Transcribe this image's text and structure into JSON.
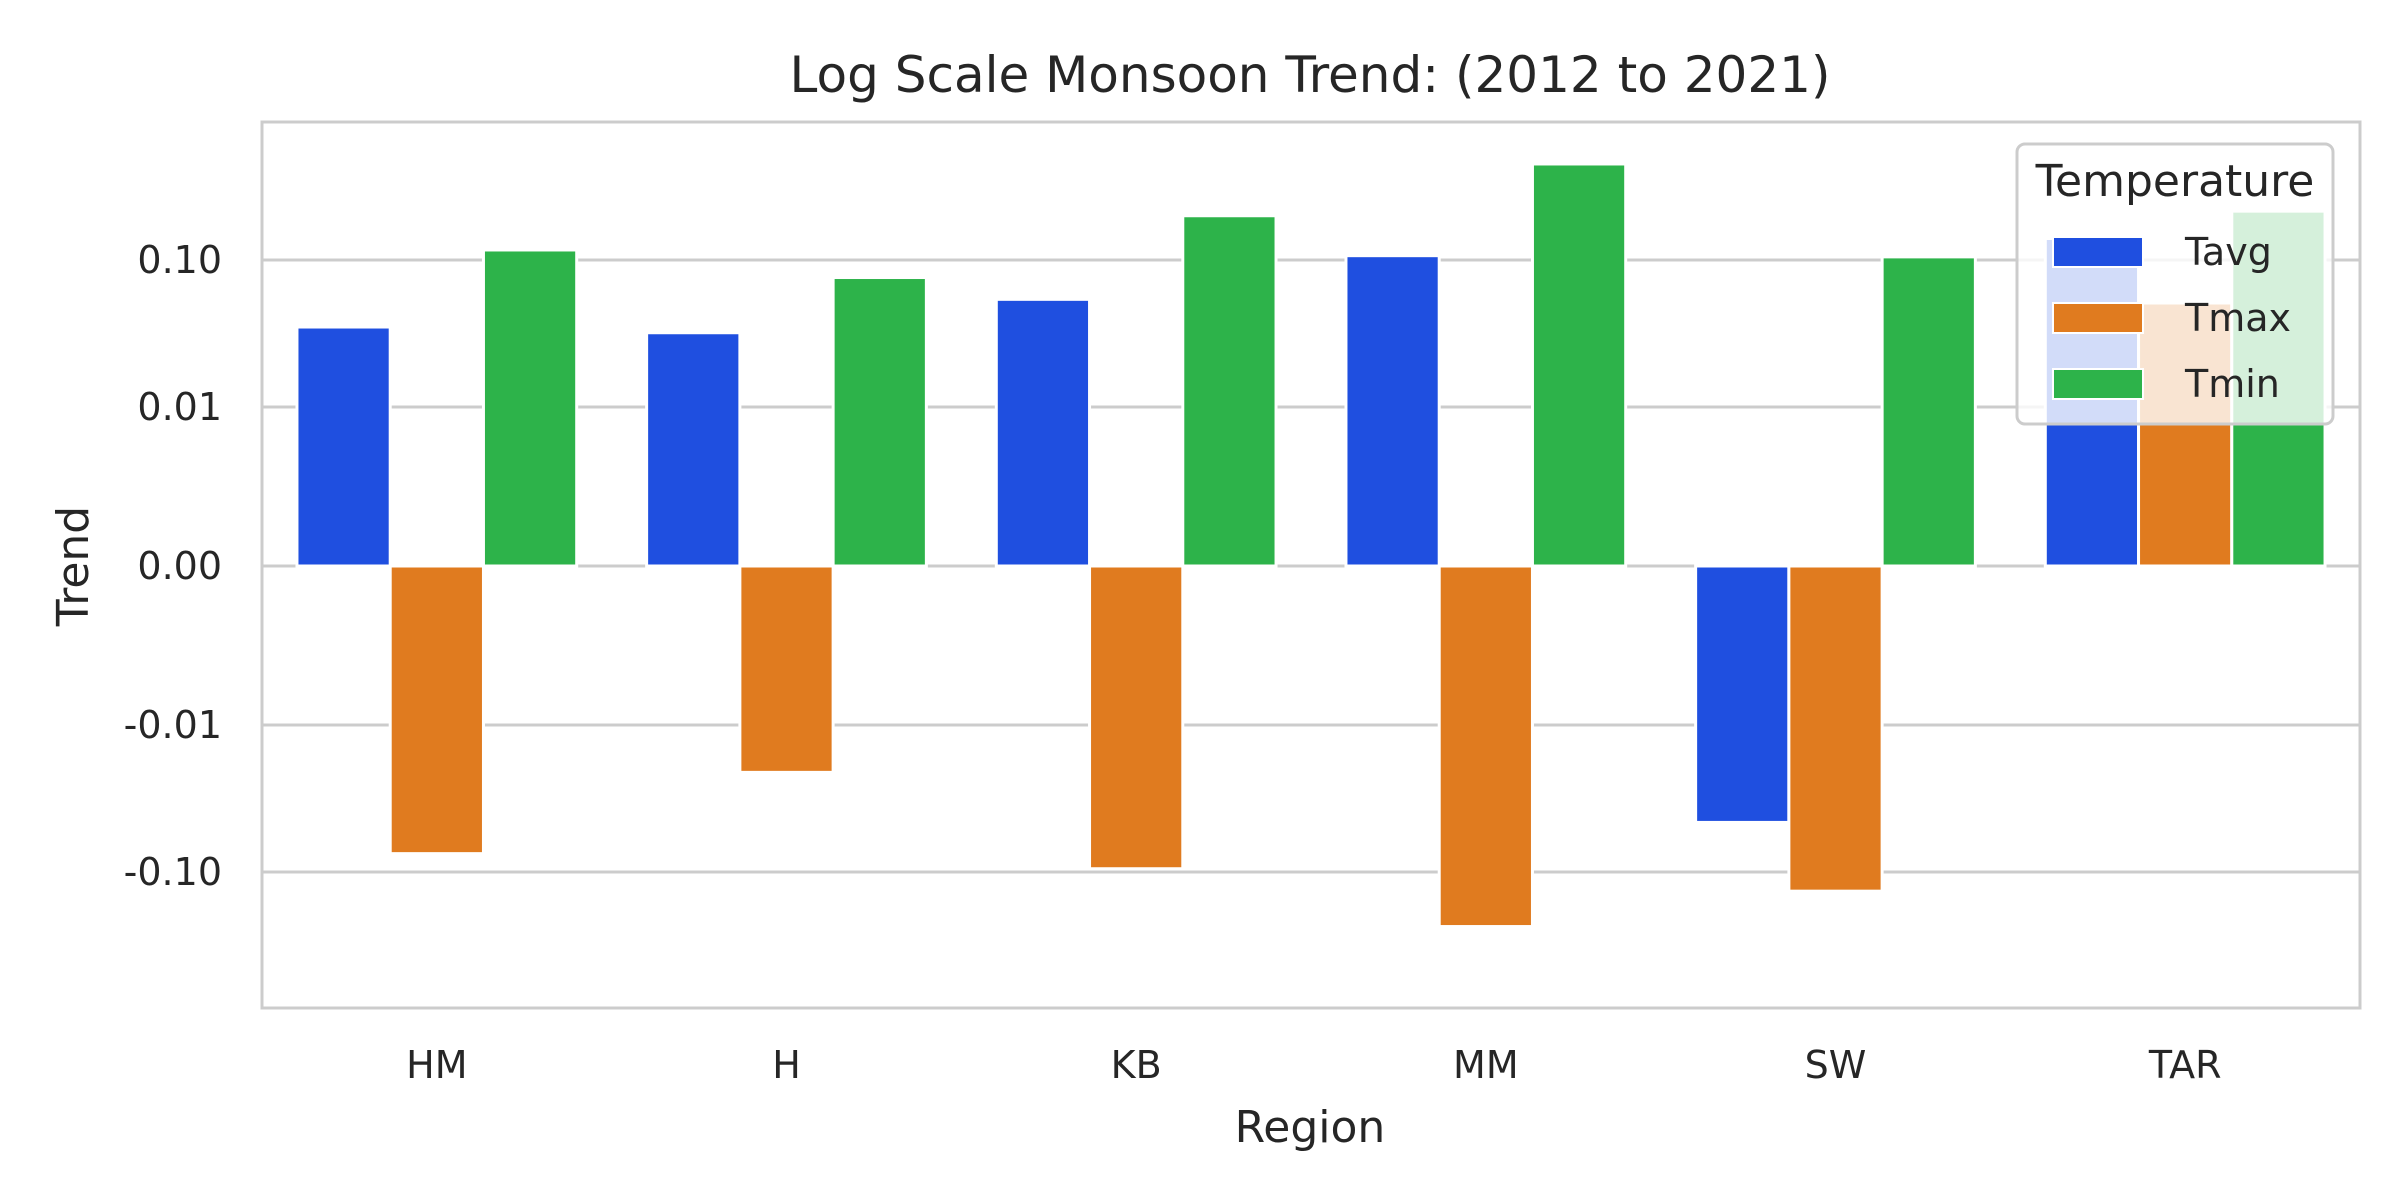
{
  "chart_data": {
    "type": "bar",
    "title": "Log Scale Monsoon Trend: (2012 to 2021)",
    "xlabel": "Region",
    "ylabel": "Trend",
    "yscale": "symlog",
    "linthresh": 0.01,
    "ylim": [
      -0.6,
      0.6
    ],
    "yticks": [
      -0.1,
      -0.01,
      0,
      0.01,
      0.1
    ],
    "ytick_labels": [
      "-0.10",
      "-0.01",
      "0.00",
      "0.01",
      "0.10"
    ],
    "categories": [
      "HM",
      "H",
      "KB",
      "MM",
      "SW",
      "TAR"
    ],
    "series": [
      {
        "name": "Tavg",
        "color": "#1f4fe0",
        "values": [
          0.035,
          0.032,
          0.054,
          0.107,
          -0.046,
          0.14
        ]
      },
      {
        "name": "Tmax",
        "color": "#e07b1f",
        "values": [
          -0.075,
          -0.021,
          -0.095,
          -0.235,
          -0.135,
          0.051
        ]
      },
      {
        "name": "Tmin",
        "color": "#2db34a",
        "values": [
          0.117,
          0.076,
          0.2,
          0.45,
          0.105,
          0.215
        ]
      }
    ],
    "legend": {
      "title": "Temperature",
      "position": "top-right"
    },
    "grid": "y"
  }
}
